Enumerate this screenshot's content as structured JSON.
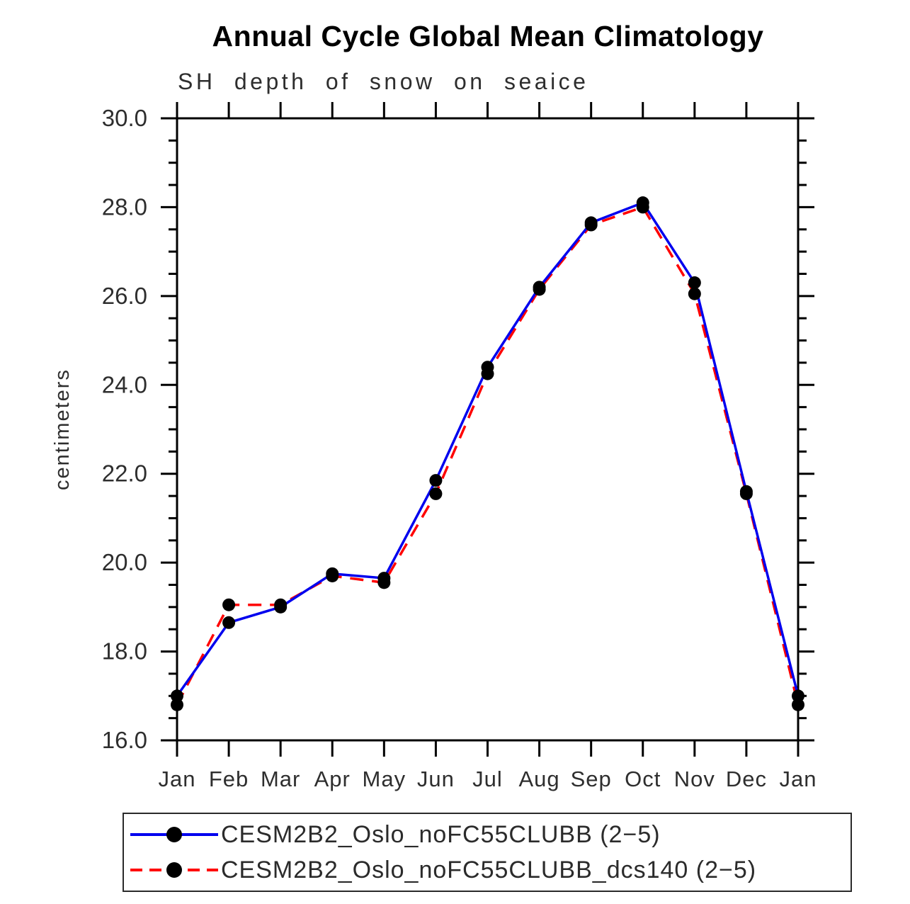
{
  "chart_data": {
    "type": "line",
    "title": "Annual Cycle Global Mean Climatology",
    "subtitle": "SH depth of snow on seaice",
    "ylabel": "centimeters",
    "ylim": [
      16.0,
      30.0
    ],
    "ytick_major": 2.0,
    "ytick_minor": 0.5,
    "ytick_label_format": "one_decimal",
    "grid": false,
    "legend_position": "bottom",
    "categories": [
      "Jan",
      "Feb",
      "Mar",
      "Apr",
      "May",
      "Jun",
      "Jul",
      "Aug",
      "Sep",
      "Oct",
      "Nov",
      "Dec",
      "Jan"
    ],
    "series": [
      {
        "name": "CESM2B2_Oslo_noFC55CLUBB (2−5)",
        "color": "#0000ee",
        "style": "solid",
        "values": [
          17.0,
          18.65,
          19.0,
          19.75,
          19.65,
          21.85,
          24.4,
          26.2,
          27.65,
          28.1,
          26.3,
          21.6,
          17.0
        ]
      },
      {
        "name": "CESM2B2_Oslo_noFC55CLUBB_dcs140 (2−5)",
        "color": "#ff0000",
        "style": "dashed",
        "values": [
          16.8,
          19.05,
          19.05,
          19.7,
          19.55,
          21.55,
          24.25,
          26.15,
          27.6,
          28.0,
          26.05,
          21.55,
          16.8
        ]
      }
    ],
    "marker": {
      "shape": "circle",
      "color": "#000000"
    }
  }
}
